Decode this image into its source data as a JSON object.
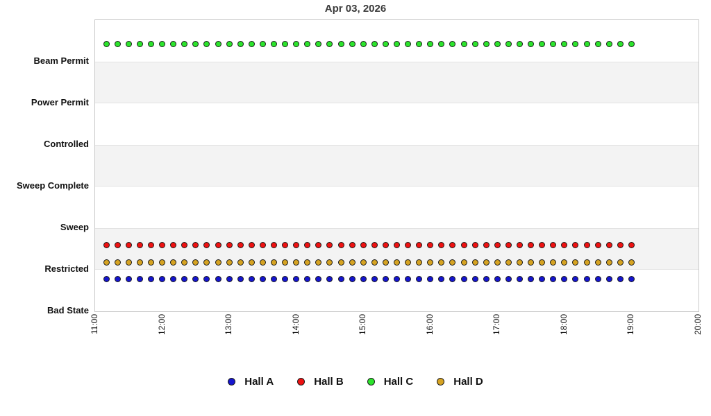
{
  "title": "Apr 03, 2026",
  "chart_data": {
    "type": "scatter",
    "title": "Apr 03, 2026",
    "xlabel": "",
    "ylabel": "",
    "grid": "alternating-horizontal-bands",
    "band_color": "#f3f3f3",
    "legend_position": "bottom-center",
    "y_categories_bottom_to_top": [
      "Bad State",
      "Restricted",
      "Sweep",
      "Sweep Complete",
      "Controlled",
      "Power Permit",
      "Beam Permit"
    ],
    "gray_band_between_categories": [
      [
        1,
        2
      ],
      [
        3,
        4
      ],
      [
        5,
        6
      ]
    ],
    "x_tick_labels": [
      "11:00",
      "12:00",
      "13:00",
      "14:00",
      "15:00",
      "16:00",
      "17:00",
      "18:00",
      "19:00",
      "20:00"
    ],
    "x_range_minutes": [
      660,
      1200
    ],
    "x_times": [
      "11:10",
      "11:20",
      "11:30",
      "11:40",
      "11:50",
      "12:00",
      "12:10",
      "12:20",
      "12:30",
      "12:40",
      "12:50",
      "13:00",
      "13:10",
      "13:20",
      "13:30",
      "13:40",
      "13:50",
      "14:00",
      "14:10",
      "14:20",
      "14:30",
      "14:40",
      "14:50",
      "15:00",
      "15:10",
      "15:20",
      "15:30",
      "15:40",
      "15:50",
      "16:00",
      "16:10",
      "16:20",
      "16:30",
      "16:40",
      "16:50",
      "17:00",
      "17:10",
      "17:20",
      "17:30",
      "17:40",
      "17:50",
      "18:00",
      "18:10",
      "18:20",
      "18:30",
      "18:40",
      "18:50",
      "19:00"
    ],
    "series": [
      {
        "name": "Hall A",
        "color": "#1515cf",
        "state": "Restricted",
        "state_index": 1,
        "stagger_offset": -0.23
      },
      {
        "name": "Hall B",
        "color": "#ee1111",
        "state": "Restricted",
        "state_index": 1,
        "stagger_offset": 0.59
      },
      {
        "name": "Hall C",
        "color": "#2ce42c",
        "state": "Beam Permit",
        "state_index": 6,
        "stagger_offset": 0.42
      },
      {
        "name": "Hall D",
        "color": "#d6a322",
        "state": "Restricted",
        "state_index": 1,
        "stagger_offset": 0.18
      }
    ]
  },
  "legend": {
    "items": [
      {
        "label": "Hall A",
        "color": "#1515cf"
      },
      {
        "label": "Hall B",
        "color": "#ee1111"
      },
      {
        "label": "Hall C",
        "color": "#2ce42c"
      },
      {
        "label": "Hall D",
        "color": "#d6a322"
      }
    ]
  }
}
